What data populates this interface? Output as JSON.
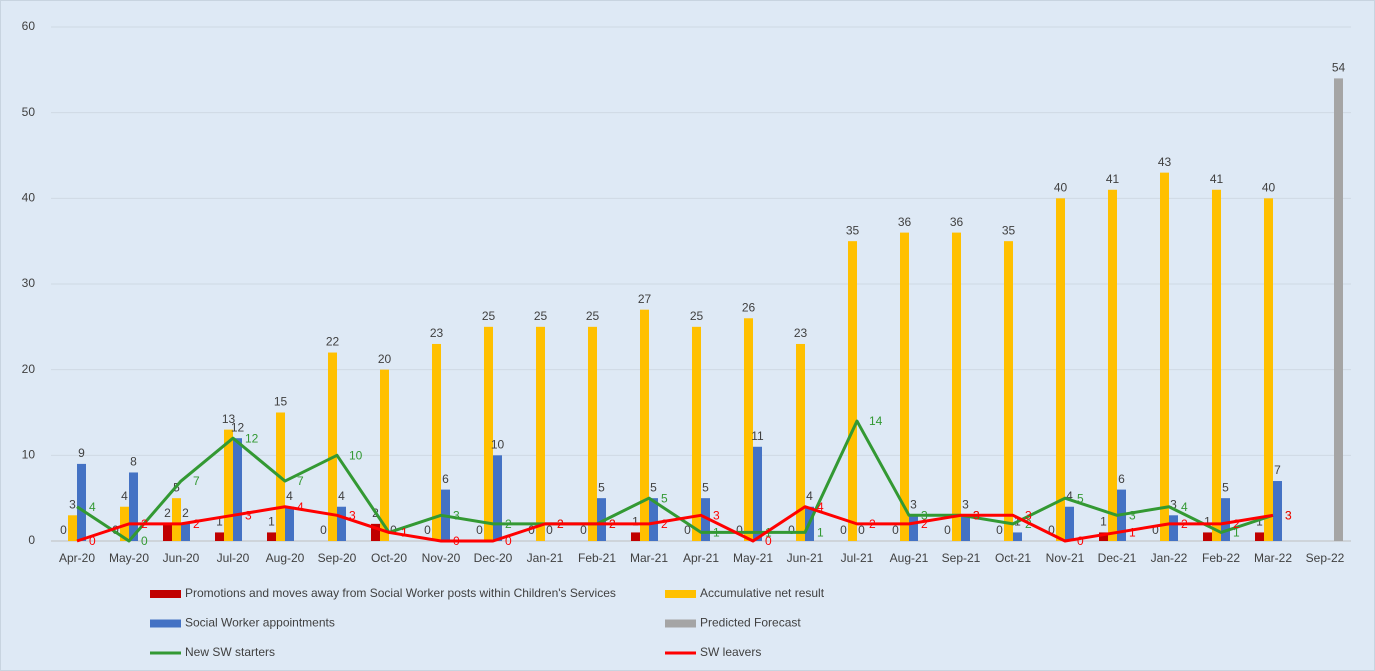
{
  "chart_data": {
    "type": "bar",
    "categories": [
      "Apr-20",
      "May-20",
      "Jun-20",
      "Jul-20",
      "Aug-20",
      "Sep-20",
      "Oct-20",
      "Nov-20",
      "Dec-20",
      "Jan-21",
      "Feb-21",
      "Mar-21",
      "Apr-21",
      "May-21",
      "Jun-21",
      "Jul-21",
      "Aug-21",
      "Sep-21",
      "Oct-21",
      "Nov-21",
      "Dec-21",
      "Jan-22",
      "Feb-22",
      "Mar-22",
      "Sep-22"
    ],
    "series": [
      {
        "name": "Promotions and moves away from Social Worker posts within Children's Services",
        "type": "bar",
        "color": "#c00000",
        "values": [
          0,
          0,
          2,
          1,
          1,
          0,
          2,
          0,
          0,
          0,
          0,
          1,
          0,
          0,
          0,
          0,
          0,
          0,
          0,
          0,
          1,
          0,
          1,
          1,
          null
        ]
      },
      {
        "name": "Accumulative net result",
        "type": "bar",
        "color": "#ffc000",
        "values": [
          3,
          4,
          5,
          13,
          15,
          22,
          20,
          23,
          25,
          25,
          25,
          27,
          25,
          26,
          23,
          35,
          36,
          36,
          35,
          40,
          41,
          43,
          41,
          40,
          null
        ]
      },
      {
        "name": "Social Worker appointments",
        "type": "bar",
        "color": "#4472c4",
        "values": [
          9,
          8,
          2,
          12,
          4,
          4,
          0,
          6,
          10,
          0,
          5,
          5,
          5,
          11,
          4,
          0,
          3,
          3,
          1,
          4,
          6,
          3,
          5,
          7,
          null
        ]
      },
      {
        "name": "Predicted Forecast",
        "type": "bar",
        "color": "#a5a5a5",
        "values": [
          null,
          null,
          null,
          null,
          null,
          null,
          null,
          null,
          null,
          null,
          null,
          null,
          null,
          null,
          null,
          null,
          null,
          null,
          null,
          null,
          null,
          null,
          null,
          null,
          54
        ]
      },
      {
        "name": "New SW starters",
        "type": "line",
        "color": "#339933",
        "values": [
          4,
          0,
          7,
          12,
          7,
          10,
          1,
          3,
          2,
          2,
          2,
          5,
          1,
          1,
          1,
          14,
          3,
          3,
          2,
          5,
          3,
          4,
          1,
          3,
          null
        ]
      },
      {
        "name": "SW leavers",
        "type": "line",
        "color": "#ff0000",
        "values": [
          0,
          2,
          2,
          3,
          4,
          3,
          1,
          0,
          0,
          2,
          2,
          2,
          3,
          0,
          4,
          2,
          2,
          3,
          3,
          0,
          1,
          2,
          2,
          3,
          null
        ]
      }
    ],
    "ylim": [
      0,
      60
    ],
    "yticks": [
      0,
      10,
      20,
      30,
      40,
      50,
      60
    ],
    "grid": true
  }
}
